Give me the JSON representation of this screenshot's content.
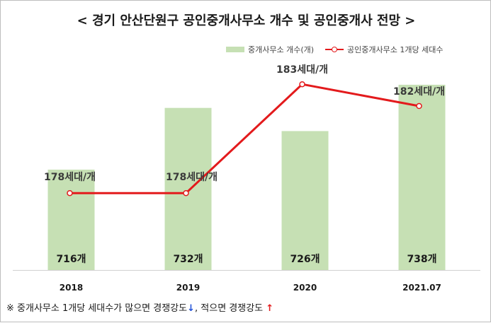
{
  "title": "< 경기 안산단원구 공인중개사무소 개수 및 공인중개사 전망 >",
  "chart_data": {
    "type": "bar",
    "categories": [
      "2018",
      "2019",
      "2020",
      "2021.07"
    ],
    "series": [
      {
        "name": "중개사무소 개수(개)",
        "type": "bar",
        "values": [
          716,
          732,
          726,
          738
        ],
        "labels": [
          "716개",
          "732개",
          "726개",
          "738개"
        ],
        "color": "#c6e0b4"
      },
      {
        "name": "공인중개사무소 1개당 세대수",
        "type": "line",
        "values": [
          178,
          178,
          183,
          182
        ],
        "labels": [
          "178세대/개",
          "178세대/개",
          "183세대/개",
          "182세대/개"
        ],
        "color": "#e31a1c"
      }
    ],
    "bar_axis_range": [
      690,
      740
    ],
    "line_axis_range": [
      174.5,
      184.5
    ],
    "grid": false,
    "legend": "top-right"
  },
  "footnote": {
    "part1": "※ 중개사무소 1개당 세대수가 많으면 경쟁강도",
    "arrow_down": "↓",
    "part2": ", 적으면 경쟁강도",
    "arrow_up": "↑"
  }
}
